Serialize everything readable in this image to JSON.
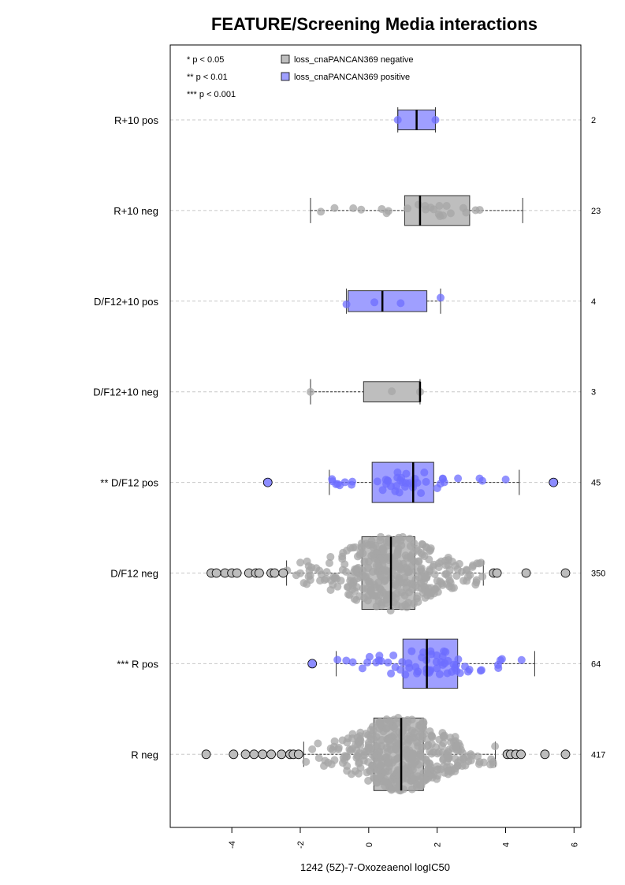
{
  "colors": {
    "negative_fill": "#bebebe",
    "positive_fill": "#9f9fff",
    "negative_point": "#a6a6a6",
    "positive_point": "#6e6eff",
    "outlier_neg": "#bdbdbd",
    "outlier_pos": "#8c8cff"
  },
  "chart_data": {
    "type": "box",
    "title": "FEATURE/Screening Media interactions",
    "xlabel": "1242 (5Z)-7-Oxozeaenol logIC50",
    "xlim": [
      -5.8,
      6.2
    ],
    "xticks": [
      "-4",
      "-2",
      "0",
      "2",
      "4",
      "6"
    ],
    "xtick_values": [
      -4,
      -2,
      0,
      2,
      4,
      6
    ],
    "grid": "horizontal dashed",
    "significance_legend": [
      "* p < 0.05",
      "** p < 0.01",
      "*** p < 0.001"
    ],
    "legend": [
      {
        "label": "loss_cnaPANCAN369 negative",
        "color": "#bebebe"
      },
      {
        "label": "loss_cnaPANCAN369 positive",
        "color": "#9f9fff"
      }
    ],
    "legend_position": "top",
    "rows": [
      {
        "label": "R+10 pos",
        "n": "2",
        "group": "positive",
        "q1": 0.85,
        "median": 1.4,
        "q3": 1.95,
        "wlo": 0.85,
        "whi": 1.95,
        "outliers": [],
        "count": 2
      },
      {
        "label": "R+10 neg",
        "n": "23",
        "group": "negative",
        "q1": 1.05,
        "median": 1.5,
        "q3": 2.95,
        "wlo": -1.7,
        "whi": 4.5,
        "outliers": [],
        "count": 23
      },
      {
        "label": "D/F12+10 pos",
        "n": "4",
        "group": "positive",
        "q1": -0.6,
        "median": 0.4,
        "q3": 1.7,
        "wlo": -0.65,
        "whi": 2.1,
        "outliers": [],
        "count": 4
      },
      {
        "label": "D/F12+10 neg",
        "n": "3",
        "group": "negative",
        "q1": -0.15,
        "median": 1.5,
        "q3": 1.5,
        "wlo": -1.7,
        "whi": 1.5,
        "outliers": [],
        "count": 3
      },
      {
        "label": "** D/F12 pos",
        "n": "45",
        "group": "positive",
        "q1": 0.1,
        "median": 1.3,
        "q3": 1.9,
        "wlo": -1.15,
        "whi": 4.4,
        "outliers": [
          -2.95,
          5.4
        ],
        "count": 45
      },
      {
        "label": "D/F12 neg",
        "n": "350",
        "group": "negative",
        "q1": -0.2,
        "median": 0.65,
        "q3": 1.35,
        "wlo": -2.4,
        "whi": 3.35,
        "outliers": [
          -4.6,
          -4.45,
          -4.2,
          -4.0,
          -3.85,
          -3.5,
          -3.3,
          -3.2,
          -2.85,
          -2.75,
          -2.5,
          3.65,
          3.75,
          4.6,
          5.75
        ],
        "count": 350
      },
      {
        "label": "*** R pos",
        "n": "64",
        "group": "positive",
        "q1": 1.0,
        "median": 1.7,
        "q3": 2.6,
        "wlo": -0.95,
        "whi": 4.85,
        "outliers": [
          -1.65
        ],
        "count": 64
      },
      {
        "label": "R neg",
        "n": "417",
        "group": "negative",
        "q1": 0.15,
        "median": 0.95,
        "q3": 1.6,
        "wlo": -1.9,
        "whi": 3.7,
        "outliers": [
          -4.75,
          -3.95,
          -3.6,
          -3.35,
          -3.1,
          -2.85,
          -2.55,
          -2.3,
          -2.2,
          -2.05,
          4.05,
          4.15,
          4.3,
          4.45,
          5.15,
          5.75
        ],
        "count": 417
      }
    ]
  }
}
